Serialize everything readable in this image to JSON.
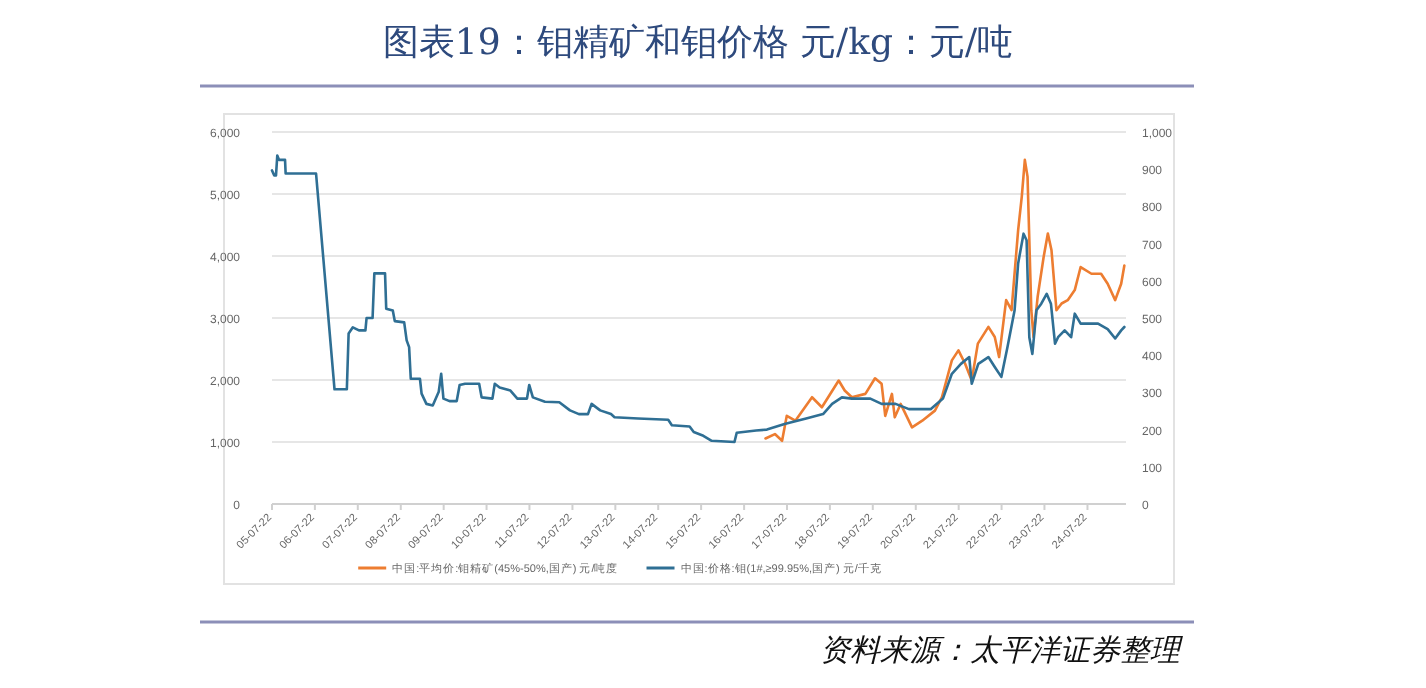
{
  "chart_data": {
    "type": "line",
    "title": "图表19：钼精矿和钼价格 元/kg：元/吨",
    "annotations": [
      "资料来源：太平洋证券整理"
    ],
    "xlim": [
      "2005-07-22",
      "2025-06-15"
    ],
    "xticks": [
      {
        "value": "2005-07-22",
        "label": "05-07-22"
      },
      {
        "value": "2006-07-22",
        "label": "06-07-22"
      },
      {
        "value": "2007-07-22",
        "label": "07-07-22"
      },
      {
        "value": "2008-07-22",
        "label": "08-07-22"
      },
      {
        "value": "2009-07-22",
        "label": "09-07-22"
      },
      {
        "value": "2010-07-22",
        "label": "10-07-22"
      },
      {
        "value": "2011-07-22",
        "label": "11-07-22"
      },
      {
        "value": "2012-07-22",
        "label": "12-07-22"
      },
      {
        "value": "2013-07-22",
        "label": "13-07-22"
      },
      {
        "value": "2014-07-22",
        "label": "14-07-22"
      },
      {
        "value": "2015-07-22",
        "label": "15-07-22"
      },
      {
        "value": "2016-07-22",
        "label": "16-07-22"
      },
      {
        "value": "2017-07-22",
        "label": "17-07-22"
      },
      {
        "value": "2018-07-22",
        "label": "18-07-22"
      },
      {
        "value": "2019-07-22",
        "label": "19-07-22"
      },
      {
        "value": "2020-07-22",
        "label": "20-07-22"
      },
      {
        "value": "2021-07-22",
        "label": "21-07-22"
      },
      {
        "value": "2022-07-22",
        "label": "22-07-22"
      },
      {
        "value": "2023-07-22",
        "label": "23-07-22"
      },
      {
        "value": "2024-07-22",
        "label": "24-07-22"
      }
    ],
    "ylim": [
      0,
      6000
    ],
    "yticks": [
      {
        "value": 0,
        "label": "0"
      },
      {
        "value": 1000,
        "label": "1,000"
      },
      {
        "value": 2000,
        "label": "2,000"
      },
      {
        "value": 3000,
        "label": "3,000"
      },
      {
        "value": 4000,
        "label": "4,000"
      },
      {
        "value": 5000,
        "label": "5,000"
      },
      {
        "value": 6000,
        "label": "6,000"
      }
    ],
    "y2lim": [
      0,
      1000
    ],
    "y2ticks": [
      0,
      100,
      200,
      300,
      400,
      500,
      600,
      700,
      800,
      900,
      {
        "value": 1000,
        "label": "1,000"
      }
    ],
    "grid": "y",
    "legend": "bottom",
    "series": [
      {
        "name": "中国:平均价:钼精矿(45%-50%,国产) 元/吨度",
        "color": "#ed7d31",
        "axis": "y2",
        "x": [
          "2017-01-20",
          "2017-04-10",
          "2017-06-10",
          "2017-07-20",
          "2017-10-01",
          "2018-02-20",
          "2018-05-15",
          "2018-10-05",
          "2018-11-25",
          "2019-01-25",
          "2019-05-20",
          "2019-08-10",
          "2019-10-05",
          "2019-11-05",
          "2020-01-01",
          "2020-01-25",
          "2020-03-15",
          "2020-06-20",
          "2020-09-15",
          "2021-01-01",
          "2021-03-01",
          "2021-05-25",
          "2021-07-20",
          "2021-09-15",
          "2021-11-10",
          "2022-01-01",
          "2022-04-01",
          "2022-05-25",
          "2022-07-01",
          "2022-08-30",
          "2022-10-15",
          "2022-12-10",
          "2023-01-10",
          "2023-02-05",
          "2023-02-28",
          "2023-04-01",
          "2023-04-20",
          "2023-05-25",
          "2023-07-15",
          "2023-08-20",
          "2023-09-20",
          "2023-11-01",
          "2023-12-15",
          "2024-02-05",
          "2024-04-05",
          "2024-05-25",
          "2024-08-25",
          "2024-11-15",
          "2025-01-10",
          "2025-03-15",
          "2025-05-05",
          "2025-06-01"
        ],
        "values": [
          176,
          188,
          170,
          237,
          224,
          287,
          260,
          332,
          305,
          287,
          296,
          338,
          323,
          237,
          296,
          233,
          269,
          206,
          224,
          251,
          287,
          386,
          413,
          377,
          332,
          431,
          476,
          449,
          395,
          548,
          521,
          736,
          826,
          925,
          880,
          521,
          449,
          557,
          664,
          727,
          682,
          521,
          539,
          548,
          575,
          637,
          619,
          619,
          592,
          548,
          592,
          641
        ]
      },
      {
        "name": "中国:价格:钼(1#,≥99.95%,国产) 元/千克",
        "color": "#2f6f94",
        "axis": "y",
        "x": [
          "2005-07-22",
          "2005-08-10",
          "2005-08-25",
          "2005-09-05",
          "2005-09-20",
          "2005-11-10",
          "2005-11-15",
          "2006-08-01",
          "2007-01-05",
          "2007-04-20",
          "2007-05-05",
          "2007-06-10",
          "2007-08-01",
          "2007-09-25",
          "2007-10-05",
          "2007-11-25",
          "2007-12-10",
          "2008-03-10",
          "2008-03-20",
          "2008-05-15",
          "2008-06-01",
          "2008-08-20",
          "2008-09-10",
          "2008-10-01",
          "2008-10-15",
          "2009-01-01",
          "2009-01-15",
          "2009-02-25",
          "2009-04-20",
          "2009-06-10",
          "2009-07-01",
          "2009-07-20",
          "2009-09-10",
          "2009-11-10",
          "2009-12-05",
          "2010-01-20",
          "2010-05-20",
          "2010-06-10",
          "2010-09-10",
          "2010-09-30",
          "2010-11-10",
          "2011-02-10",
          "2011-04-10",
          "2011-07-01",
          "2011-07-20",
          "2011-08-20",
          "2011-12-01",
          "2012-04-01",
          "2012-07-01",
          "2012-09-15",
          "2012-12-01",
          "2013-01-01",
          "2013-03-15",
          "2013-06-15",
          "2013-07-15",
          "2014-02-01",
          "2014-10-15",
          "2014-11-15",
          "2015-04-15",
          "2015-05-20",
          "2015-08-10",
          "2015-10-20",
          "2016-05-01",
          "2016-05-20",
          "2016-11-01",
          "2017-02-01",
          "2017-07-01",
          "2018-01-01",
          "2018-05-25",
          "2018-08-10",
          "2018-11-01",
          "2019-01-25",
          "2019-07-01",
          "2019-10-05",
          "2020-02-01",
          "2020-05-25",
          "2020-11-25",
          "2021-03-10",
          "2021-05-25",
          "2021-08-10",
          "2021-10-20",
          "2021-11-10",
          "2022-01-05",
          "2022-04-01",
          "2022-05-25",
          "2022-07-20",
          "2022-09-10",
          "2022-11-10",
          "2022-12-10",
          "2023-01-25",
          "2023-02-20",
          "2023-03-15",
          "2023-04-10",
          "2023-05-15",
          "2023-06-25",
          "2023-08-10",
          "2023-09-15",
          "2023-10-20",
          "2023-11-15",
          "2024-01-10",
          "2024-03-05",
          "2024-04-05",
          "2024-05-25",
          "2024-10-20",
          "2025-01-10",
          "2025-03-15",
          "2025-05-05",
          "2025-06-01"
        ],
        "values": [
          5380,
          5300,
          5300,
          5620,
          5550,
          5550,
          5330,
          5330,
          1850,
          1850,
          2750,
          2850,
          2800,
          2800,
          3000,
          3000,
          3720,
          3720,
          3150,
          3120,
          2950,
          2930,
          2640,
          2530,
          2020,
          2020,
          1780,
          1615,
          1590,
          1810,
          2100,
          1700,
          1660,
          1660,
          1920,
          1940,
          1940,
          1720,
          1700,
          1940,
          1880,
          1830,
          1700,
          1700,
          1920,
          1720,
          1650,
          1640,
          1510,
          1450,
          1450,
          1615,
          1510,
          1450,
          1400,
          1380,
          1360,
          1270,
          1250,
          1160,
          1100,
          1020,
          1000,
          1150,
          1185,
          1200,
          1290,
          1380,
          1450,
          1615,
          1720,
          1700,
          1700,
          1615,
          1615,
          1530,
          1530,
          1700,
          2100,
          2260,
          2370,
          1940,
          2260,
          2370,
          2210,
          2050,
          2530,
          3125,
          3880,
          4360,
          4255,
          2690,
          2420,
          3125,
          3230,
          3390,
          3230,
          2585,
          2690,
          2800,
          2690,
          3070,
          2910,
          2910,
          2820,
          2670,
          2800,
          2855
        ]
      }
    ]
  }
}
